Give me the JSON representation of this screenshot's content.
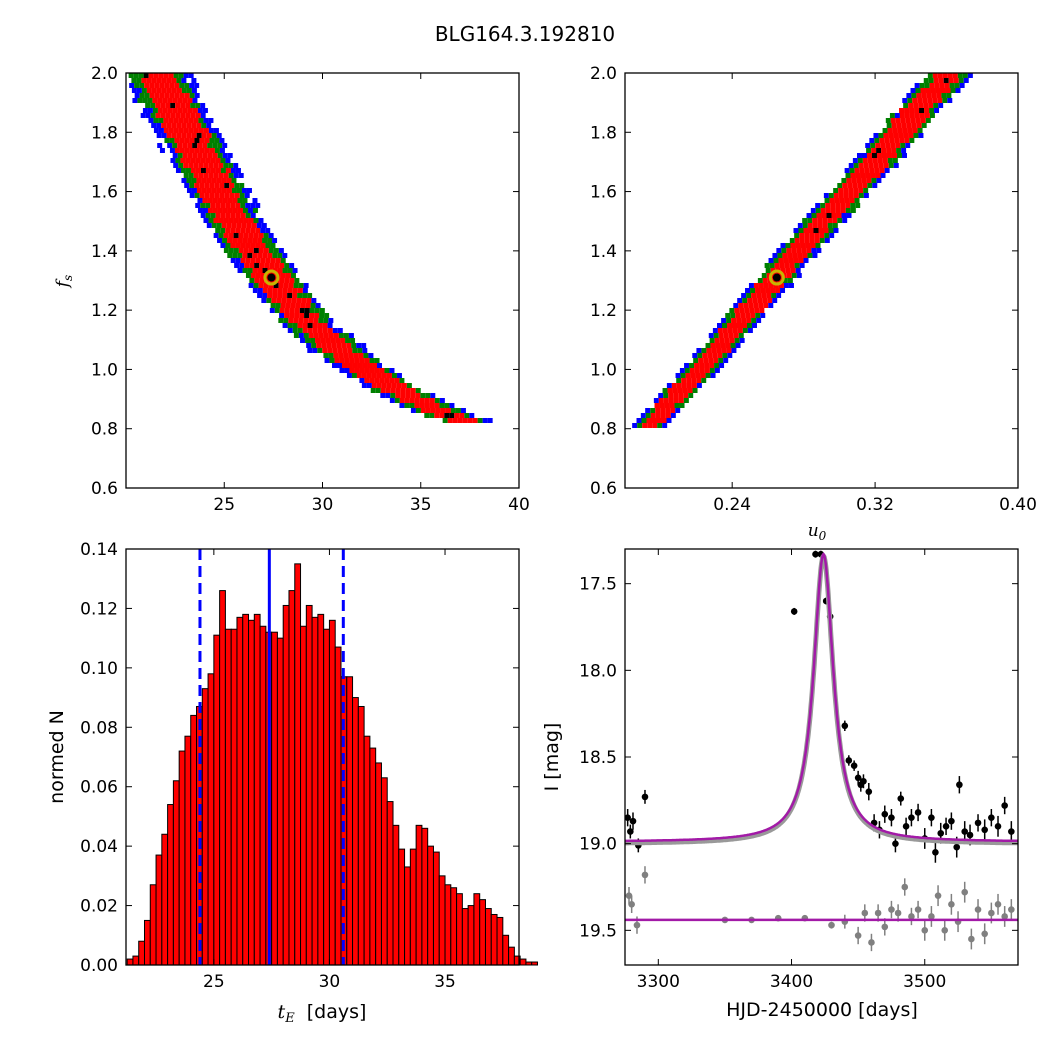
{
  "figure": {
    "title": "BLG164.3.192810"
  },
  "colors": {
    "bin_outer": "#0000ff",
    "bin_mid": "#008000",
    "bin_inner": "#ff0000",
    "bin_best": "#000000",
    "best_marker": "#c8b400",
    "hist_bar": "#ff0000",
    "median_line": "#0000ff",
    "model_line": "#a21aa7",
    "data_main": "#000000",
    "data_ref": "#808080"
  },
  "chart_data": [
    {
      "id": "tE_vs_fs",
      "type": "heatmap",
      "title": "",
      "xlabel": "",
      "ylabel": "f_s",
      "xlim": [
        20,
        40
      ],
      "ylim": [
        0.6,
        2.0
      ],
      "xticks": [
        "25",
        "30",
        "35",
        "40"
      ],
      "yticks": [
        "0.6",
        "0.8",
        "1.0",
        "1.2",
        "1.4",
        "1.6",
        "1.8",
        "2.0"
      ],
      "grid": false,
      "levels": [
        "outer",
        "mid",
        "inner",
        "best"
      ],
      "ridge": [
        [
          21.5,
          2.0
        ],
        [
          23.5,
          1.75
        ],
        [
          25.5,
          1.5
        ],
        [
          27.5,
          1.3
        ],
        [
          29.5,
          1.14
        ],
        [
          31.5,
          1.03
        ],
        [
          33.5,
          0.94
        ],
        [
          35.5,
          0.87
        ],
        [
          37.5,
          0.82
        ]
      ],
      "best_fit": [
        27.4,
        1.31
      ]
    },
    {
      "id": "u0_vs_fs",
      "type": "heatmap",
      "title": "",
      "xlabel": "u_0",
      "ylabel": "",
      "xlim": [
        0.18,
        0.4
      ],
      "ylim": [
        0.6,
        2.0
      ],
      "xticks": [
        "0.24",
        "0.32",
        "0.40"
      ],
      "yticks": [
        "0.6",
        "0.8",
        "1.0",
        "1.2",
        "1.4",
        "1.6",
        "1.8",
        "2.0"
      ],
      "grid": false,
      "ridge": [
        [
          0.194,
          0.81
        ],
        [
          0.222,
          1.0
        ],
        [
          0.25,
          1.2
        ],
        [
          0.278,
          1.41
        ],
        [
          0.306,
          1.6
        ],
        [
          0.334,
          1.8
        ],
        [
          0.362,
          2.0
        ]
      ],
      "best_fit": [
        0.265,
        1.31
      ]
    },
    {
      "id": "tE_hist",
      "type": "bar",
      "title": "",
      "xlabel": "t_E  [days]",
      "ylabel": "normed N",
      "xlim": [
        21.2,
        38.2
      ],
      "ylim": [
        0.0,
        0.14
      ],
      "xticks": [
        "25",
        "30",
        "35"
      ],
      "yticks": [
        "0.00",
        "0.02",
        "0.04",
        "0.06",
        "0.08",
        "0.10",
        "0.12",
        "0.14"
      ],
      "grid": false,
      "bin_start": 21.25,
      "bin_width": 0.25,
      "values": [
        0.002,
        0.003,
        0.008,
        0.015,
        0.027,
        0.037,
        0.044,
        0.054,
        0.062,
        0.072,
        0.077,
        0.084,
        0.087,
        0.093,
        0.098,
        0.111,
        0.126,
        0.113,
        0.113,
        0.117,
        0.118,
        0.116,
        0.118,
        0.114,
        0.112,
        0.112,
        0.11,
        0.121,
        0.126,
        0.135,
        0.114,
        0.121,
        0.117,
        0.118,
        0.113,
        0.116,
        0.107,
        0.097,
        0.097,
        0.09,
        0.087,
        0.077,
        0.073,
        0.068,
        0.063,
        0.055,
        0.047,
        0.039,
        0.033,
        0.039,
        0.047,
        0.046,
        0.04,
        0.038,
        0.03,
        0.027,
        0.026,
        0.024,
        0.019,
        0.02,
        0.024,
        0.022,
        0.019,
        0.017,
        0.016,
        0.01,
        0.006,
        0.003,
        0.002,
        0.001,
        0.001,
        0.0
      ],
      "median": 27.4,
      "lower": 24.4,
      "upper": 30.6
    },
    {
      "id": "lightcurve",
      "type": "scatter",
      "title": "",
      "xlabel": "HJD-2450000 [days]",
      "ylabel": "I [mag]",
      "xlim": [
        3275,
        3570
      ],
      "ylim": [
        19.7,
        17.3
      ],
      "xticks": [
        "3300",
        "3400",
        "3500"
      ],
      "yticks": [
        "17.5",
        "18.0",
        "18.5",
        "19.0",
        "19.5"
      ],
      "grid": false,
      "model": {
        "t0": 3424,
        "base": 18.99,
        "peak": 17.33,
        "width": 9
      },
      "ref_level": 19.44,
      "series": [
        {
          "color": "#000000",
          "x": [
            3277,
            3279,
            3281,
            3285,
            3290,
            3402,
            3418,
            3422,
            3426,
            3429,
            3440,
            3443,
            3447,
            3450,
            3452,
            3454,
            3458,
            3462,
            3466,
            3470,
            3475,
            3478,
            3482,
            3486,
            3490,
            3495,
            3500,
            3505,
            3508,
            3512,
            3516,
            3520,
            3524,
            3526,
            3530,
            3534,
            3540,
            3545,
            3550,
            3555,
            3560,
            3565
          ],
          "y": [
            18.85,
            18.93,
            18.87,
            19.01,
            18.73,
            17.66,
            17.33,
            17.33,
            17.6,
            17.69,
            18.32,
            18.52,
            18.55,
            18.62,
            18.66,
            18.64,
            18.7,
            18.88,
            18.92,
            18.83,
            18.85,
            19.0,
            18.74,
            18.9,
            18.85,
            18.82,
            18.97,
            18.85,
            19.05,
            18.94,
            18.9,
            18.87,
            19.02,
            18.66,
            18.93,
            18.95,
            18.88,
            18.92,
            18.85,
            18.9,
            18.78,
            18.93
          ],
          "err": [
            0.05,
            0.04,
            0.05,
            0.04,
            0.04,
            0.02,
            0.02,
            0.02,
            0.02,
            0.02,
            0.03,
            0.03,
            0.03,
            0.04,
            0.04,
            0.04,
            0.05,
            0.05,
            0.05,
            0.05,
            0.05,
            0.05,
            0.04,
            0.05,
            0.05,
            0.05,
            0.06,
            0.05,
            0.06,
            0.06,
            0.05,
            0.05,
            0.06,
            0.05,
            0.06,
            0.06,
            0.05,
            0.06,
            0.05,
            0.06,
            0.05,
            0.06
          ]
        },
        {
          "color": "#808080",
          "x": [
            3278,
            3280,
            3284,
            3290,
            3350,
            3370,
            3390,
            3410,
            3430,
            3440,
            3450,
            3455,
            3460,
            3465,
            3470,
            3475,
            3480,
            3485,
            3490,
            3495,
            3500,
            3505,
            3510,
            3515,
            3520,
            3525,
            3530,
            3535,
            3540,
            3545,
            3550,
            3555,
            3560,
            3565
          ],
          "y": [
            19.3,
            19.35,
            19.47,
            19.18,
            19.44,
            19.44,
            19.43,
            19.43,
            19.47,
            19.45,
            19.53,
            19.4,
            19.57,
            19.4,
            19.48,
            19.38,
            19.4,
            19.25,
            19.42,
            19.38,
            19.5,
            19.42,
            19.3,
            19.5,
            19.35,
            19.45,
            19.28,
            19.55,
            19.38,
            19.52,
            19.4,
            19.35,
            19.42,
            19.38
          ],
          "err": [
            0.05,
            0.05,
            0.05,
            0.05,
            0.01,
            0.01,
            0.01,
            0.01,
            0.02,
            0.04,
            0.05,
            0.05,
            0.05,
            0.05,
            0.05,
            0.05,
            0.05,
            0.05,
            0.05,
            0.05,
            0.06,
            0.06,
            0.06,
            0.06,
            0.06,
            0.06,
            0.06,
            0.06,
            0.06,
            0.06,
            0.06,
            0.06,
            0.06,
            0.06
          ]
        }
      ]
    }
  ]
}
